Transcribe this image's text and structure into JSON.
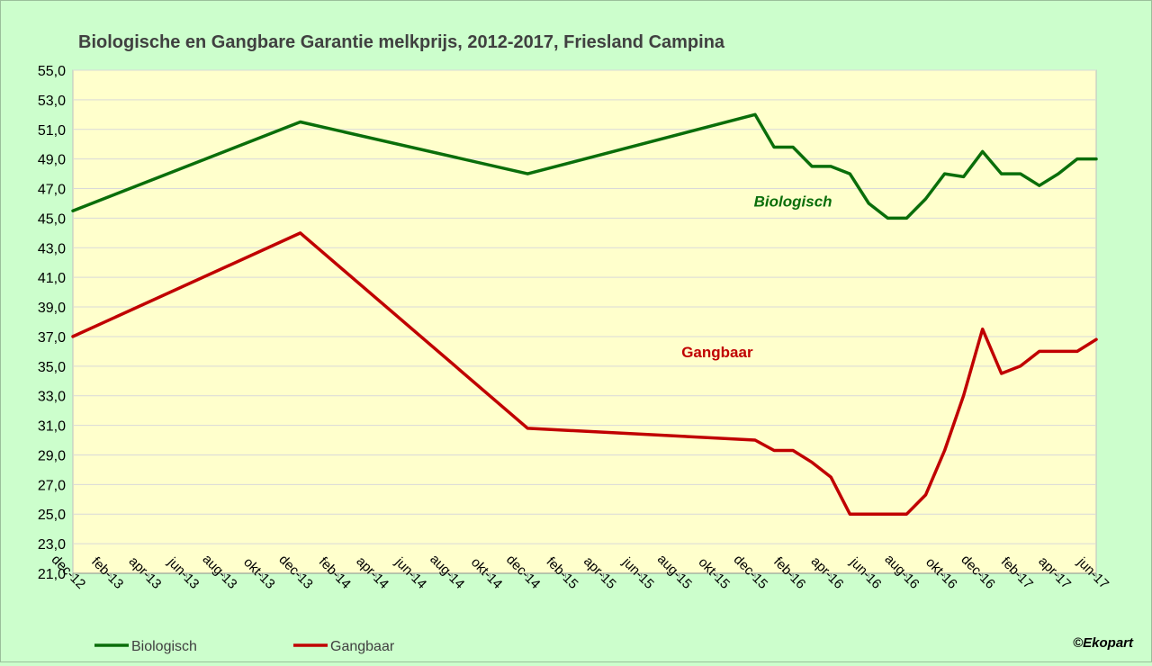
{
  "chart_data": {
    "type": "line",
    "title": "Biologische en Gangbare Garantie melkprijs, 2012-2017,  Friesland Campina",
    "xlabel": "",
    "ylabel": "",
    "ylim": [
      21,
      55
    ],
    "y_ticks": [
      "21,0",
      "23,0",
      "25,0",
      "27,0",
      "29,0",
      "31,0",
      "33,0",
      "35,0",
      "37,0",
      "39,0",
      "41,0",
      "43,0",
      "45,0",
      "47,0",
      "49,0",
      "51,0",
      "53,0",
      "55,0"
    ],
    "x_tick_labels": [
      "dec-12",
      "feb-13",
      "apr-13",
      "jun-13",
      "aug-13",
      "okt-13",
      "dec-13",
      "feb-14",
      "apr-14",
      "jun-14",
      "aug-14",
      "okt-14",
      "dec-14",
      "feb-15",
      "apr-15",
      "jun-15",
      "aug-15",
      "okt-15",
      "dec-15",
      "feb-16",
      "apr-16",
      "jun-16",
      "aug-16",
      "okt-16",
      "dec-16",
      "feb-17",
      "apr-17",
      "jun-17"
    ],
    "grid": true,
    "legend_position": "bottom-left",
    "series": [
      {
        "name": "Biologisch",
        "color": "#0a6e0a",
        "points": [
          [
            "2012-12",
            45.5
          ],
          [
            "2013-12",
            51.5
          ],
          [
            "2014-12",
            48.0
          ],
          [
            "2015-12",
            52.0
          ],
          [
            "2016-01",
            49.8
          ],
          [
            "2016-02",
            49.8
          ],
          [
            "2016-03",
            48.5
          ],
          [
            "2016-04",
            48.5
          ],
          [
            "2016-05",
            48.0
          ],
          [
            "2016-06",
            46.0
          ],
          [
            "2016-07",
            45.0
          ],
          [
            "2016-08",
            45.0
          ],
          [
            "2016-09",
            46.3
          ],
          [
            "2016-10",
            48.0
          ],
          [
            "2016-11",
            47.8
          ],
          [
            "2016-12",
            49.5
          ],
          [
            "2017-01",
            48.0
          ],
          [
            "2017-02",
            48.0
          ],
          [
            "2017-03",
            47.2
          ],
          [
            "2017-04",
            48.0
          ],
          [
            "2017-05",
            49.0
          ],
          [
            "2017-06",
            49.0
          ]
        ]
      },
      {
        "name": "Gangbaar",
        "color": "#c00000",
        "points": [
          [
            "2012-12",
            37.0
          ],
          [
            "2013-12",
            44.0
          ],
          [
            "2014-12",
            30.8
          ],
          [
            "2015-12",
            30.0
          ],
          [
            "2016-01",
            29.3
          ],
          [
            "2016-02",
            29.3
          ],
          [
            "2016-03",
            28.5
          ],
          [
            "2016-04",
            27.5
          ],
          [
            "2016-05",
            25.0
          ],
          [
            "2016-06",
            25.0
          ],
          [
            "2016-07",
            25.0
          ],
          [
            "2016-08",
            25.0
          ],
          [
            "2016-09",
            26.3
          ],
          [
            "2016-10",
            29.3
          ],
          [
            "2016-11",
            33.0
          ],
          [
            "2016-12",
            37.5
          ],
          [
            "2017-01",
            34.5
          ],
          [
            "2017-02",
            35.0
          ],
          [
            "2017-03",
            36.0
          ],
          [
            "2017-04",
            36.0
          ],
          [
            "2017-05",
            36.0
          ],
          [
            "2017-06",
            36.8
          ]
        ]
      }
    ],
    "annotations": [
      {
        "text": "Biologisch",
        "color": "#0a6e0a",
        "at_x": "2016-02",
        "at_y": 45.8
      },
      {
        "text": "Gangbaar",
        "color": "#c00000",
        "at_x": "2015-10",
        "at_y": 35.6
      }
    ],
    "credit": "©Ekopart"
  },
  "colors": {
    "page_background": "#ccfecc",
    "plot_background": "#ffffcc",
    "gridline": "#d9d9d9",
    "text": "#404040"
  }
}
